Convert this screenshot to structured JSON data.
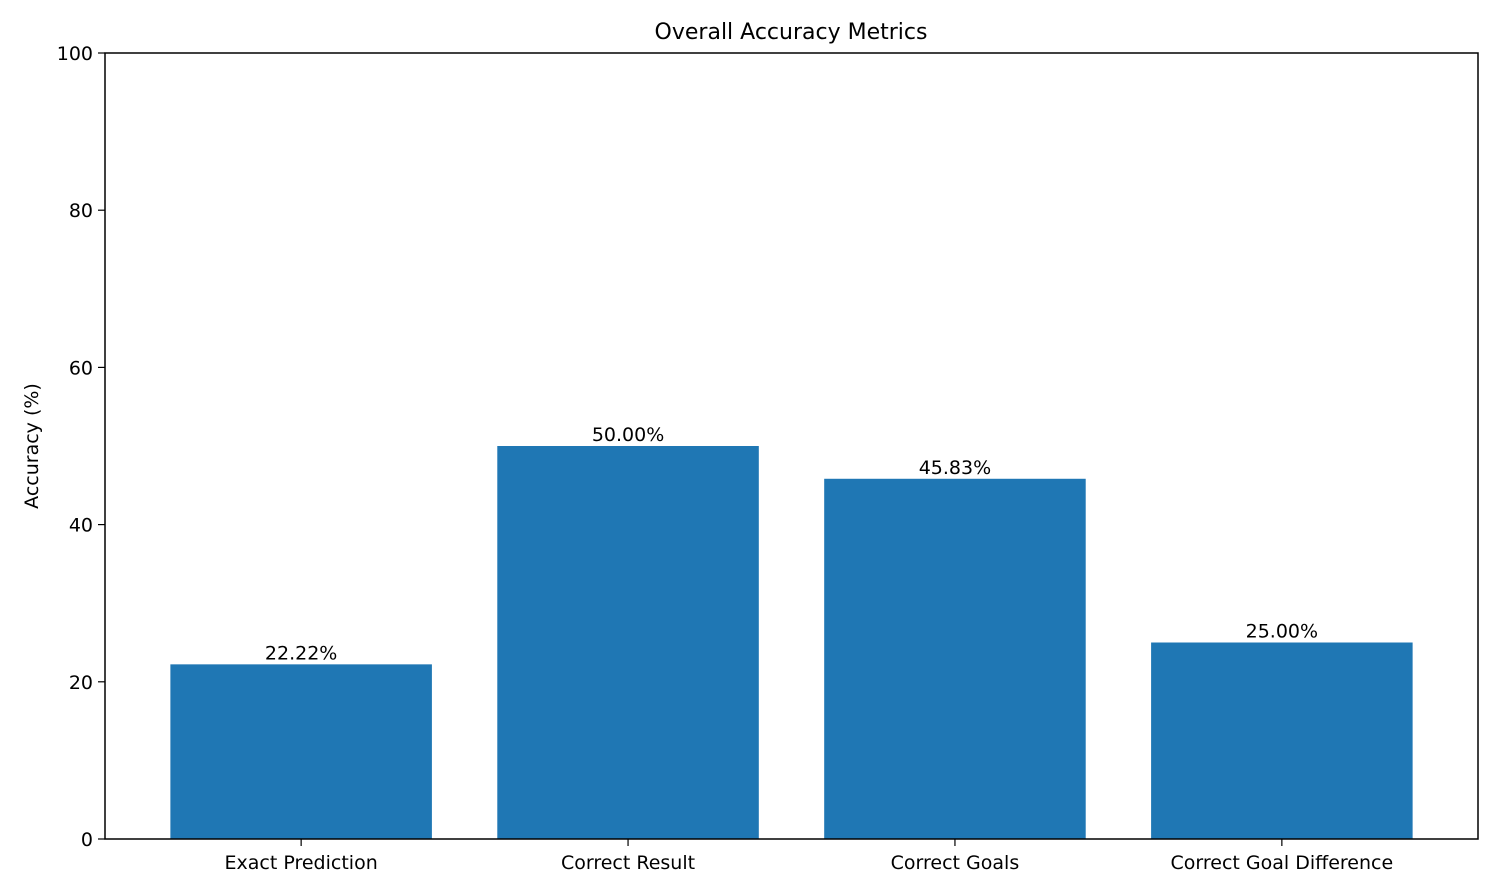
{
  "chart_data": {
    "type": "bar",
    "title": "Overall Accuracy Metrics",
    "xlabel": "",
    "ylabel": "Accuracy (%)",
    "categories": [
      "Exact Prediction",
      "Correct Result",
      "Correct Goals",
      "Correct Goal Difference"
    ],
    "values": [
      22.22,
      50.0,
      45.83,
      25.0
    ],
    "value_labels": [
      "22.22%",
      "50.00%",
      "45.83%",
      "25.00%"
    ],
    "ylim": [
      0,
      100
    ],
    "yticks": [
      0,
      20,
      40,
      60,
      80,
      100
    ],
    "ytick_labels": [
      "0",
      "20",
      "40",
      "60",
      "80",
      "100"
    ],
    "grid": false,
    "bar_color": "#1f77b4"
  }
}
